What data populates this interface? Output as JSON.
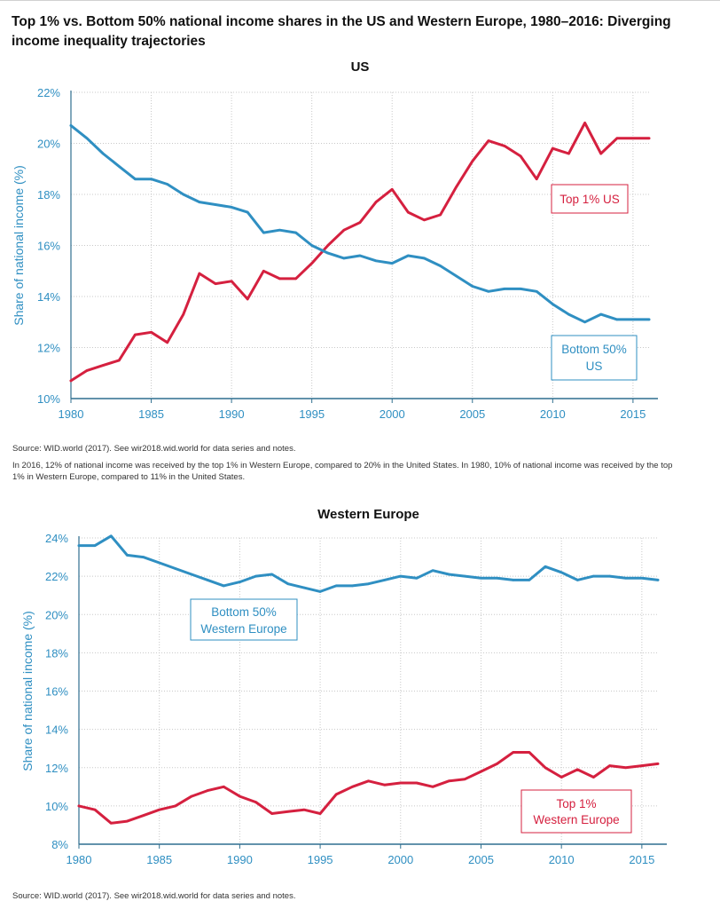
{
  "title": "Top 1% vs. Bottom 50% national income shares in the US and Western Europe, 1980–2016: Diverging income inequality trajectories",
  "colors": {
    "top1": "#d5203f",
    "bottom50": "#2f8fc2",
    "axis": "#2f6f8f"
  },
  "chart_data": [
    {
      "type": "line",
      "title": "US",
      "xlabel": "",
      "ylabel": "Share of national income (%)",
      "xlim": [
        1980,
        2016
      ],
      "ylim": [
        10,
        22
      ],
      "yticks": [
        10,
        12,
        14,
        16,
        18,
        20,
        22
      ],
      "ytick_labels": [
        "10%",
        "12%",
        "14%",
        "16%",
        "18%",
        "20%",
        "22%"
      ],
      "xticks": [
        1980,
        1985,
        1990,
        1995,
        2000,
        2005,
        2010,
        2015
      ],
      "xtick_labels": [
        "1980",
        "1985",
        "1990",
        "1995",
        "2000",
        "2005",
        "2010",
        "2015"
      ],
      "grid": true,
      "x": [
        1980,
        1981,
        1982,
        1983,
        1984,
        1985,
        1986,
        1987,
        1988,
        1989,
        1990,
        1991,
        1992,
        1993,
        1994,
        1995,
        1996,
        1997,
        1998,
        1999,
        2000,
        2001,
        2002,
        2003,
        2004,
        2005,
        2006,
        2007,
        2008,
        2009,
        2010,
        2011,
        2012,
        2013,
        2014,
        2015,
        2016
      ],
      "series": [
        {
          "name": "Top 1% US",
          "color": "#d5203f",
          "values": [
            10.7,
            11.1,
            11.3,
            11.5,
            12.5,
            12.6,
            12.2,
            13.3,
            14.9,
            14.5,
            14.6,
            13.9,
            15.0,
            14.7,
            14.7,
            15.3,
            16.0,
            16.6,
            16.9,
            17.7,
            18.2,
            17.3,
            17.0,
            17.2,
            18.3,
            19.3,
            20.1,
            19.9,
            19.5,
            18.6,
            19.8,
            19.6,
            20.8,
            19.6,
            20.2,
            20.2,
            20.2
          ]
        },
        {
          "name": "Bottom 50% US",
          "color": "#2f8fc2",
          "values": [
            20.7,
            20.2,
            19.6,
            19.1,
            18.6,
            18.6,
            18.4,
            18.0,
            17.7,
            17.6,
            17.5,
            17.3,
            16.5,
            16.6,
            16.5,
            16.0,
            15.7,
            15.5,
            15.6,
            15.4,
            15.3,
            15.6,
            15.5,
            15.2,
            14.8,
            14.4,
            14.2,
            14.3,
            14.3,
            14.2,
            13.7,
            13.3,
            13.0,
            13.3,
            13.1,
            13.1,
            13.1
          ]
        }
      ],
      "annotations": [
        {
          "text": "Top 1% US",
          "color": "#d5203f"
        },
        {
          "text": "Bottom 50%",
          "text2": "US",
          "color": "#2f8fc2"
        }
      ]
    },
    {
      "type": "line",
      "title": "Western Europe",
      "xlabel": "",
      "ylabel": "Share of national income (%)",
      "xlim": [
        1980,
        2016
      ],
      "ylim": [
        8,
        24
      ],
      "yticks": [
        8,
        10,
        12,
        14,
        16,
        18,
        20,
        22,
        24
      ],
      "ytick_labels": [
        "8%",
        "10%",
        "12%",
        "14%",
        "16%",
        "18%",
        "20%",
        "22%",
        "24%"
      ],
      "xticks": [
        1980,
        1985,
        1990,
        1995,
        2000,
        2005,
        2010,
        2015
      ],
      "xtick_labels": [
        "1980",
        "1985",
        "1990",
        "1995",
        "2000",
        "2005",
        "2010",
        "2015"
      ],
      "grid": true,
      "x": [
        1980,
        1981,
        1982,
        1983,
        1984,
        1985,
        1986,
        1987,
        1988,
        1989,
        1990,
        1991,
        1992,
        1993,
        1994,
        1995,
        1996,
        1997,
        1998,
        1999,
        2000,
        2001,
        2002,
        2003,
        2004,
        2005,
        2006,
        2007,
        2008,
        2009,
        2010,
        2011,
        2012,
        2013,
        2014,
        2015,
        2016
      ],
      "series": [
        {
          "name": "Top 1% Western Europe",
          "color": "#d5203f",
          "values": [
            10.0,
            9.8,
            9.1,
            9.2,
            9.5,
            9.8,
            10.0,
            10.5,
            10.8,
            11.0,
            10.5,
            10.2,
            9.6,
            9.7,
            9.8,
            9.6,
            10.6,
            11.0,
            11.3,
            11.1,
            11.2,
            11.2,
            11.0,
            11.3,
            11.4,
            11.8,
            12.2,
            12.8,
            12.8,
            12.0,
            11.5,
            11.9,
            11.5,
            12.1,
            12.0,
            12.1,
            12.2
          ]
        },
        {
          "name": "Bottom 50% Western Europe",
          "color": "#2f8fc2",
          "values": [
            23.6,
            23.6,
            24.1,
            23.1,
            23.0,
            22.7,
            22.4,
            22.1,
            21.8,
            21.5,
            21.7,
            22.0,
            22.1,
            21.6,
            21.4,
            21.2,
            21.5,
            21.5,
            21.6,
            21.8,
            22.0,
            21.9,
            22.3,
            22.1,
            22.0,
            21.9,
            21.9,
            21.8,
            21.8,
            22.5,
            22.2,
            21.8,
            22.0,
            22.0,
            21.9,
            21.9,
            21.8
          ]
        }
      ],
      "annotations": [
        {
          "text": "Bottom 50%",
          "text2": "Western Europe",
          "color": "#2f8fc2"
        },
        {
          "text": "Top 1%",
          "text2": "Western Europe",
          "color": "#d5203f"
        }
      ]
    }
  ],
  "notes": {
    "us_source": "Source:  WID.world (2017). See wir2018.wid.world for data series and notes.",
    "us_text": "In 2016, 12% of national income was received by the top 1% in Western Europe, compared to 20% in the United States. In 1980, 10% of national income was received by the top 1% in Western Europe, compared to 11% in the United States.",
    "eu_source": "Source:  WID.world (2017). See wir2018.wid.world for data series and notes."
  }
}
